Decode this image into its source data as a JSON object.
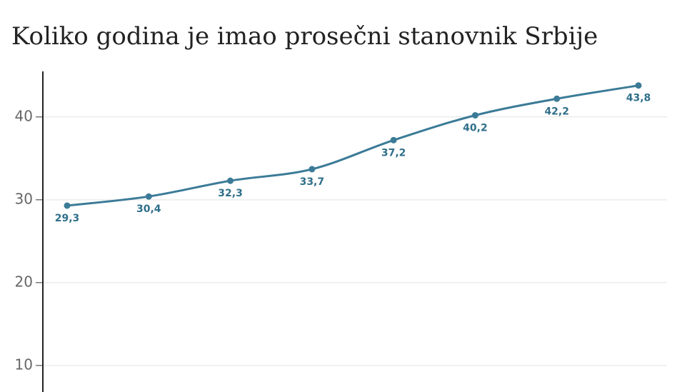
{
  "chart_data": {
    "type": "line",
    "title": "Koliko godina je imao prosečni stanovnik Srbije",
    "categories": [
      null,
      null,
      null,
      null,
      null,
      null,
      null,
      null
    ],
    "series": [
      {
        "name": null,
        "color": "#3b7b97",
        "values": [
          29.3,
          30.4,
          32.3,
          33.7,
          37.2,
          40.2,
          42.2,
          43.8
        ],
        "value_labels": [
          "29,3",
          "30,4",
          "32,3",
          "33,7",
          "37,2",
          "40,2",
          "42,2",
          "43,8"
        ]
      }
    ],
    "ylim": [
      6.8,
      45.5
    ],
    "yticks": [
      10,
      20,
      30,
      40
    ],
    "grid": true
  }
}
